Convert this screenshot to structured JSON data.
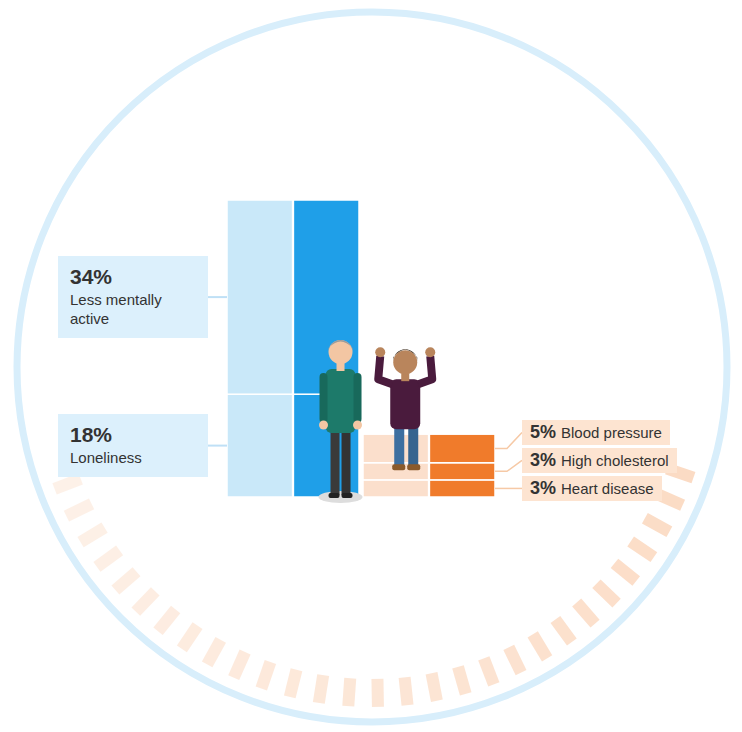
{
  "chart_data": {
    "type": "bar",
    "stacked": true,
    "data_labels": true,
    "tick_labels": false,
    "categories": [
      null,
      null
    ],
    "series": [
      {
        "name": "Loneliness",
        "color": "#1f9fe8",
        "values": [
          18,
          null
        ],
        "value_labels": [
          "18%",
          null
        ]
      },
      {
        "name": "Less mentally active",
        "color": "#1f9fe8",
        "values": [
          34,
          null
        ],
        "value_labels": [
          "34%",
          null
        ]
      },
      {
        "name": "Heart disease",
        "color": "#f07b2b",
        "values": [
          null,
          3
        ],
        "value_labels": [
          null,
          "3%"
        ]
      },
      {
        "name": "High cholesterol",
        "color": "#f07b2b",
        "values": [
          null,
          3
        ],
        "value_labels": [
          null,
          "3%"
        ]
      },
      {
        "name": "Blood pressure",
        "color": "#f07b2b",
        "values": [
          null,
          5
        ],
        "value_labels": [
          null,
          "5%"
        ]
      }
    ]
  }
}
